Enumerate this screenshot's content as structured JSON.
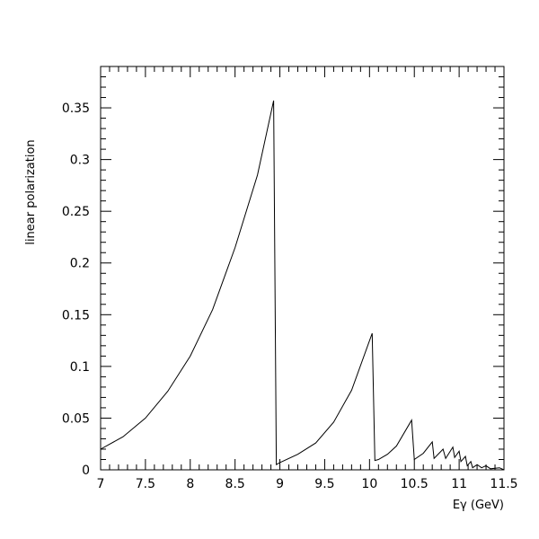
{
  "chart_data": {
    "type": "line",
    "title": "",
    "xlabel": "Eγ (GeV)",
    "ylabel": "linear polarization",
    "xlim": [
      7,
      11.5
    ],
    "ylim": [
      0,
      0.39
    ],
    "grid": false,
    "x_ticks": [
      "7",
      "7.5",
      "8",
      "8.5",
      "9",
      "9.5",
      "10",
      "10.5",
      "11",
      "11.5"
    ],
    "y_ticks": [
      "0",
      "0.05",
      "0.1",
      "0.15",
      "0.2",
      "0.25",
      "0.3",
      "0.35"
    ],
    "x_tick_values": [
      7,
      7.5,
      8,
      8.5,
      9,
      9.5,
      10,
      10.5,
      11,
      11.5
    ],
    "y_tick_values": [
      0,
      0.05,
      0.1,
      0.15,
      0.2,
      0.25,
      0.3,
      0.35
    ],
    "series": [
      {
        "color": "#000000",
        "points": [
          [
            7.0,
            0.02
          ],
          [
            7.25,
            0.032
          ],
          [
            7.5,
            0.05
          ],
          [
            7.75,
            0.076
          ],
          [
            8.0,
            0.11
          ],
          [
            8.25,
            0.155
          ],
          [
            8.5,
            0.215
          ],
          [
            8.75,
            0.285
          ],
          [
            8.93,
            0.357
          ],
          [
            8.96,
            0.005
          ],
          [
            9.0,
            0.007
          ],
          [
            9.2,
            0.015
          ],
          [
            9.4,
            0.026
          ],
          [
            9.6,
            0.046
          ],
          [
            9.8,
            0.077
          ],
          [
            10.03,
            0.132
          ],
          [
            10.06,
            0.009
          ],
          [
            10.1,
            0.01
          ],
          [
            10.2,
            0.015
          ],
          [
            10.3,
            0.023
          ],
          [
            10.47,
            0.048
          ],
          [
            10.5,
            0.01
          ],
          [
            10.6,
            0.016
          ],
          [
            10.7,
            0.027
          ],
          [
            10.72,
            0.011
          ],
          [
            10.82,
            0.02
          ],
          [
            10.85,
            0.011
          ],
          [
            10.93,
            0.022
          ],
          [
            10.95,
            0.012
          ],
          [
            11.0,
            0.018
          ],
          [
            11.02,
            0.008
          ],
          [
            11.07,
            0.013
          ],
          [
            11.09,
            0.004
          ],
          [
            11.13,
            0.008
          ],
          [
            11.15,
            0.002
          ],
          [
            11.2,
            0.005
          ],
          [
            11.25,
            0.002
          ],
          [
            11.3,
            0.004
          ],
          [
            11.35,
            0.001
          ],
          [
            11.45,
            0.002
          ],
          [
            11.5,
            0.0
          ]
        ]
      }
    ]
  }
}
